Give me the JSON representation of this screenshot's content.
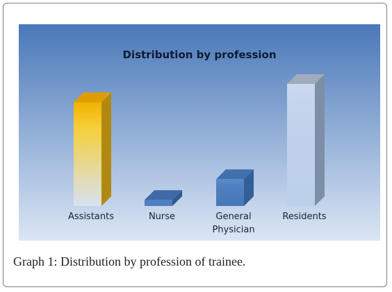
{
  "caption": {
    "label": "Graph 1:",
    "text": "Distribution by profession of trainee."
  },
  "chart_data": {
    "type": "bar",
    "title": "Distribution by profession",
    "categories": [
      "Assistants",
      "Nurse",
      "General\nPhysician",
      "Residents"
    ],
    "values": [
      0.85,
      0.05,
      0.22,
      1.0
    ],
    "xlabel": "",
    "ylabel": "",
    "ylim": [
      0,
      1.0
    ],
    "grid": false,
    "legend": "none",
    "style": "3d-column",
    "background_gradient": [
      "#4a78b9",
      "#dbe6f4"
    ],
    "bar_colors": [
      {
        "front_top": "#f2b200",
        "front_mid": "#f6cf3a",
        "front_bottom": "#d7e2f2",
        "side": "#b08a10",
        "top": "#e09d00"
      },
      {
        "front_top": "#4e7fbf",
        "front_mid": "#4e7fbf",
        "front_bottom": "#4e7fbf",
        "side": "#33588f",
        "top": "#3f6aa7"
      },
      {
        "front_top": "#5b8ccb",
        "front_mid": "#4f80c0",
        "front_bottom": "#4678b8",
        "side": "#335e9a",
        "top": "#4270ad"
      },
      {
        "front_top": "#c9d8ee",
        "front_mid": "#c2d3ec",
        "front_bottom": "#bccfe9",
        "side": "#7d8fa7",
        "top": "#a0acbd"
      }
    ]
  }
}
